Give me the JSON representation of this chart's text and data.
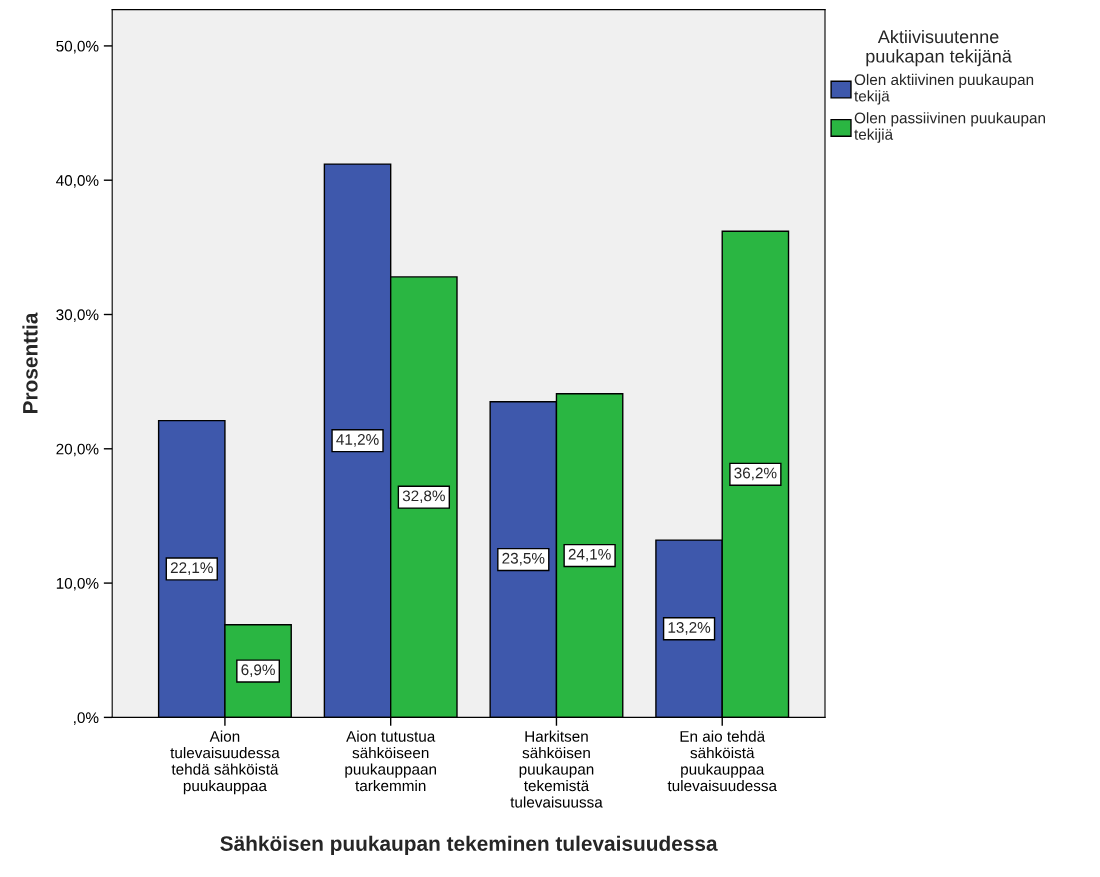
{
  "chart_data": {
    "type": "bar",
    "xlabel": "Sähköisen puukaupan tekeminen tulevaisuudessa",
    "ylabel": "Prosenttia",
    "legend_title": "Aktiivisuutenne\npuukapan tekijänä",
    "categories": [
      "Aion\ntulevaisuudessa\ntehdä sähköistä\npuukauppaa",
      "Aion tutustua\nsähköiseen\npuukauppaan\ntarkemmin",
      "Harkitsen\nsähköisen\npuukaupan\ntekemistä\ntulevaisuussa",
      "En aio tehdä\nsähköistä\npuukauppaa\ntulevaisuudessa"
    ],
    "series": [
      {
        "name": "Olen aktiivinen puukaupan\ntekijä",
        "color": "#3e58ac",
        "values": [
          22.1,
          41.2,
          23.5,
          13.2
        ],
        "value_labels": [
          "22,1%",
          "41,2%",
          "23,5%",
          "13,2%"
        ]
      },
      {
        "name": "Olen passiivinen puukaupan\ntekijiä",
        "color": "#2ab642",
        "values": [
          6.9,
          32.8,
          24.1,
          36.2
        ],
        "value_labels": [
          "6,9%",
          "32,8%",
          "24,1%",
          "36,2%"
        ]
      }
    ],
    "ylim": [
      0,
      52.7
    ],
    "yticks": [
      {
        "value": 0,
        "label": ",0%"
      },
      {
        "value": 10,
        "label": "10,0%"
      },
      {
        "value": 20,
        "label": "20,0%"
      },
      {
        "value": 30,
        "label": "30,0%"
      },
      {
        "value": 40,
        "label": "40,0%"
      },
      {
        "value": 50,
        "label": "50,0%"
      }
    ],
    "grid": false,
    "legend": "right"
  }
}
